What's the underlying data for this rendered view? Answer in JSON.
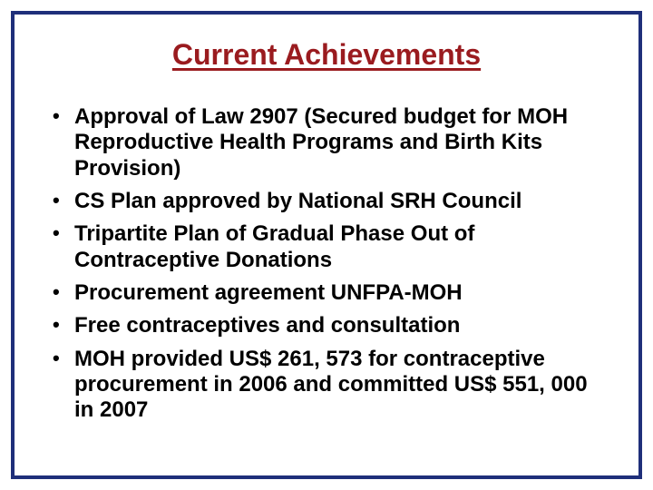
{
  "slide": {
    "title": "Current Achievements",
    "title_color": "#9a1b1f",
    "border_color": "#1f2f7a",
    "background_color": "#ffffff",
    "text_color": "#000000",
    "title_fontsize": 32,
    "body_fontsize": 24,
    "bullets": [
      "Approval of Law 2907 (Secured budget for MOH Reproductive Health Programs and Birth Kits Provision)",
      "CS Plan approved by National SRH Council",
      "Tripartite Plan of Gradual Phase Out of Contraceptive Donations",
      "Procurement agreement UNFPA-MOH",
      "Free contraceptives and consultation",
      "MOH provided US$ 261, 573 for contraceptive procurement in 2006 and committed US$ 551, 000 in 2007"
    ]
  }
}
